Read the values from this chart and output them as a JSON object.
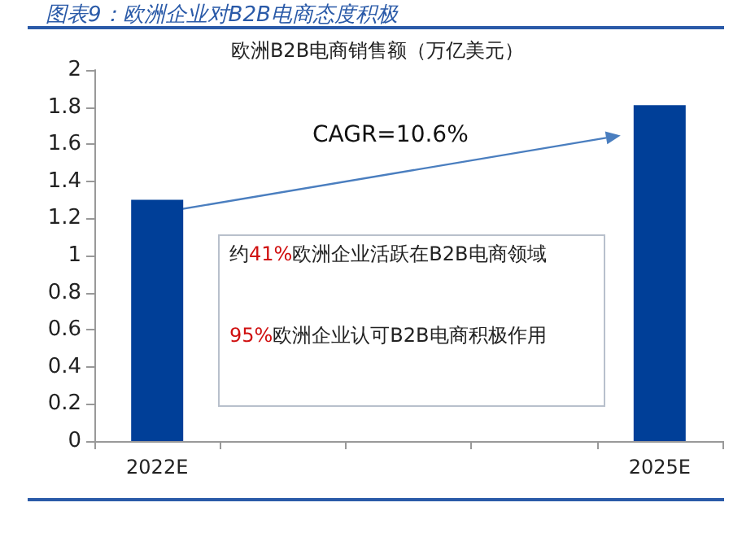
{
  "chart_data": {
    "type": "bar",
    "title": "图表9：欧洲企业对B2B电商态度积极",
    "subtitle": "欧洲B2B电商销售额（万亿美元）",
    "categories": [
      "2022E",
      null,
      null,
      null,
      "2025E"
    ],
    "values": [
      1.3,
      null,
      null,
      null,
      1.81
    ],
    "color": "#003f98",
    "ylim": [
      0,
      2
    ],
    "yticks": [
      0,
      0.2,
      0.4,
      0.6,
      0.8,
      1,
      1.2,
      1.4,
      1.6,
      1.8,
      2
    ],
    "grid": false,
    "annotations": [
      "CAGR=10.6%",
      "约41%欧洲企业活跃在B2B电商领域",
      "95%欧洲企业认可B2B电商积极作用"
    ]
  }
}
